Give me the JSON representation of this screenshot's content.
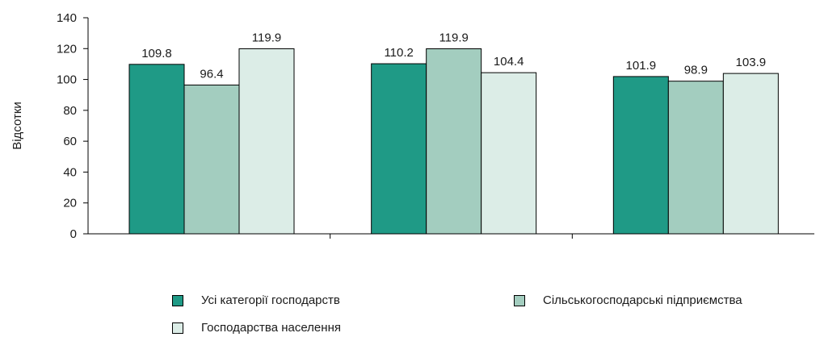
{
  "chart_data": {
    "type": "bar",
    "categories": [
      "",
      "",
      ""
    ],
    "series": [
      {
        "name": "Усі категорії господарств",
        "values": [
          109.8,
          110.2,
          101.9
        ],
        "color": "#1f9a86"
      },
      {
        "name": "Сільськогосподарські підприємства",
        "values": [
          96.4,
          119.9,
          98.9
        ],
        "color": "#a3cdbf"
      },
      {
        "name": "Господарства населення",
        "values": [
          119.9,
          104.4,
          103.9
        ],
        "color": "#dcede7"
      }
    ],
    "value_labels": [
      [
        "109.8",
        "110.2",
        "101.9"
      ],
      [
        "96.4",
        "119.9",
        "98.9"
      ],
      [
        "119.9",
        "104.4",
        "103.9"
      ]
    ],
    "ylabel": "Відсотки",
    "xlabel": "",
    "ylim": [
      0,
      140
    ],
    "yticks": [
      "0",
      "20",
      "40",
      "60",
      "80",
      "100",
      "120",
      "140"
    ],
    "grid": false,
    "legend_position": "bottom"
  }
}
